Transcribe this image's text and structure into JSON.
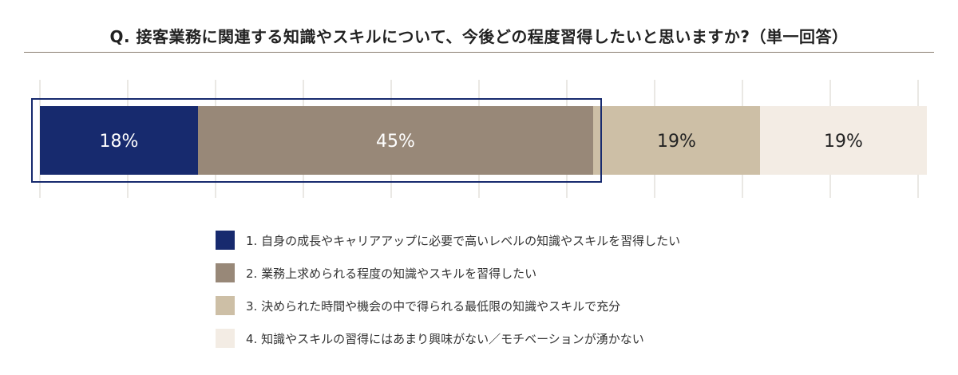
{
  "title": "Q. 接客業務に関連する知識やスキルについて、今後どの程度習得したいと思いますか?（単一回答）",
  "colors": {
    "navy": "#172a6e",
    "taupe": "#988878",
    "sand": "#cdbfa6",
    "cream": "#f3ece4",
    "highlight_border": "#172a6e",
    "grid": "#d6d0c8",
    "rule": "#8a7f72"
  },
  "chart_data": {
    "type": "bar",
    "orientation": "horizontal-stacked-100",
    "categories": [
      ""
    ],
    "series": [
      {
        "name": "1. 自身の成長やキャリアアップに必要で高いレベルの知識やスキルを習得したい",
        "values": [
          18
        ],
        "label": "18%",
        "color": "#172a6e",
        "label_color": "#ffffff"
      },
      {
        "name": "2. 業務上求められる程度の知識やスキルを習得したい",
        "values": [
          45
        ],
        "label": "45%",
        "color": "#988878",
        "label_color": "#ffffff"
      },
      {
        "name": "3. 決められた時間や機会の中で得られる最低限の知識やスキルで充分",
        "values": [
          19
        ],
        "label": "19%",
        "color": "#cdbfa6",
        "label_color": "#222222"
      },
      {
        "name": "4. 知識やスキルの習得にはあまり興味がない／モチベーションが湧かない",
        "values": [
          19
        ],
        "label": "19%",
        "color": "#f3ece4",
        "label_color": "#222222"
      }
    ],
    "xlim": [
      0,
      100
    ],
    "grid": true,
    "legend": "bottom",
    "highlighted_series": [
      0,
      1
    ]
  },
  "legend": {
    "items": [
      {
        "label": "1. 自身の成長やキャリアアップに必要で高いレベルの知識やスキルを習得したい",
        "color": "#172a6e"
      },
      {
        "label": "2. 業務上求められる程度の知識やスキルを習得したい",
        "color": "#988878"
      },
      {
        "label": "3. 決められた時間や機会の中で得られる最低限の知識やスキルで充分",
        "color": "#cdbfa6"
      },
      {
        "label": "4. 知識やスキルの習得にはあまり興味がない／モチベーションが湧かない",
        "color": "#f3ece4"
      }
    ]
  }
}
